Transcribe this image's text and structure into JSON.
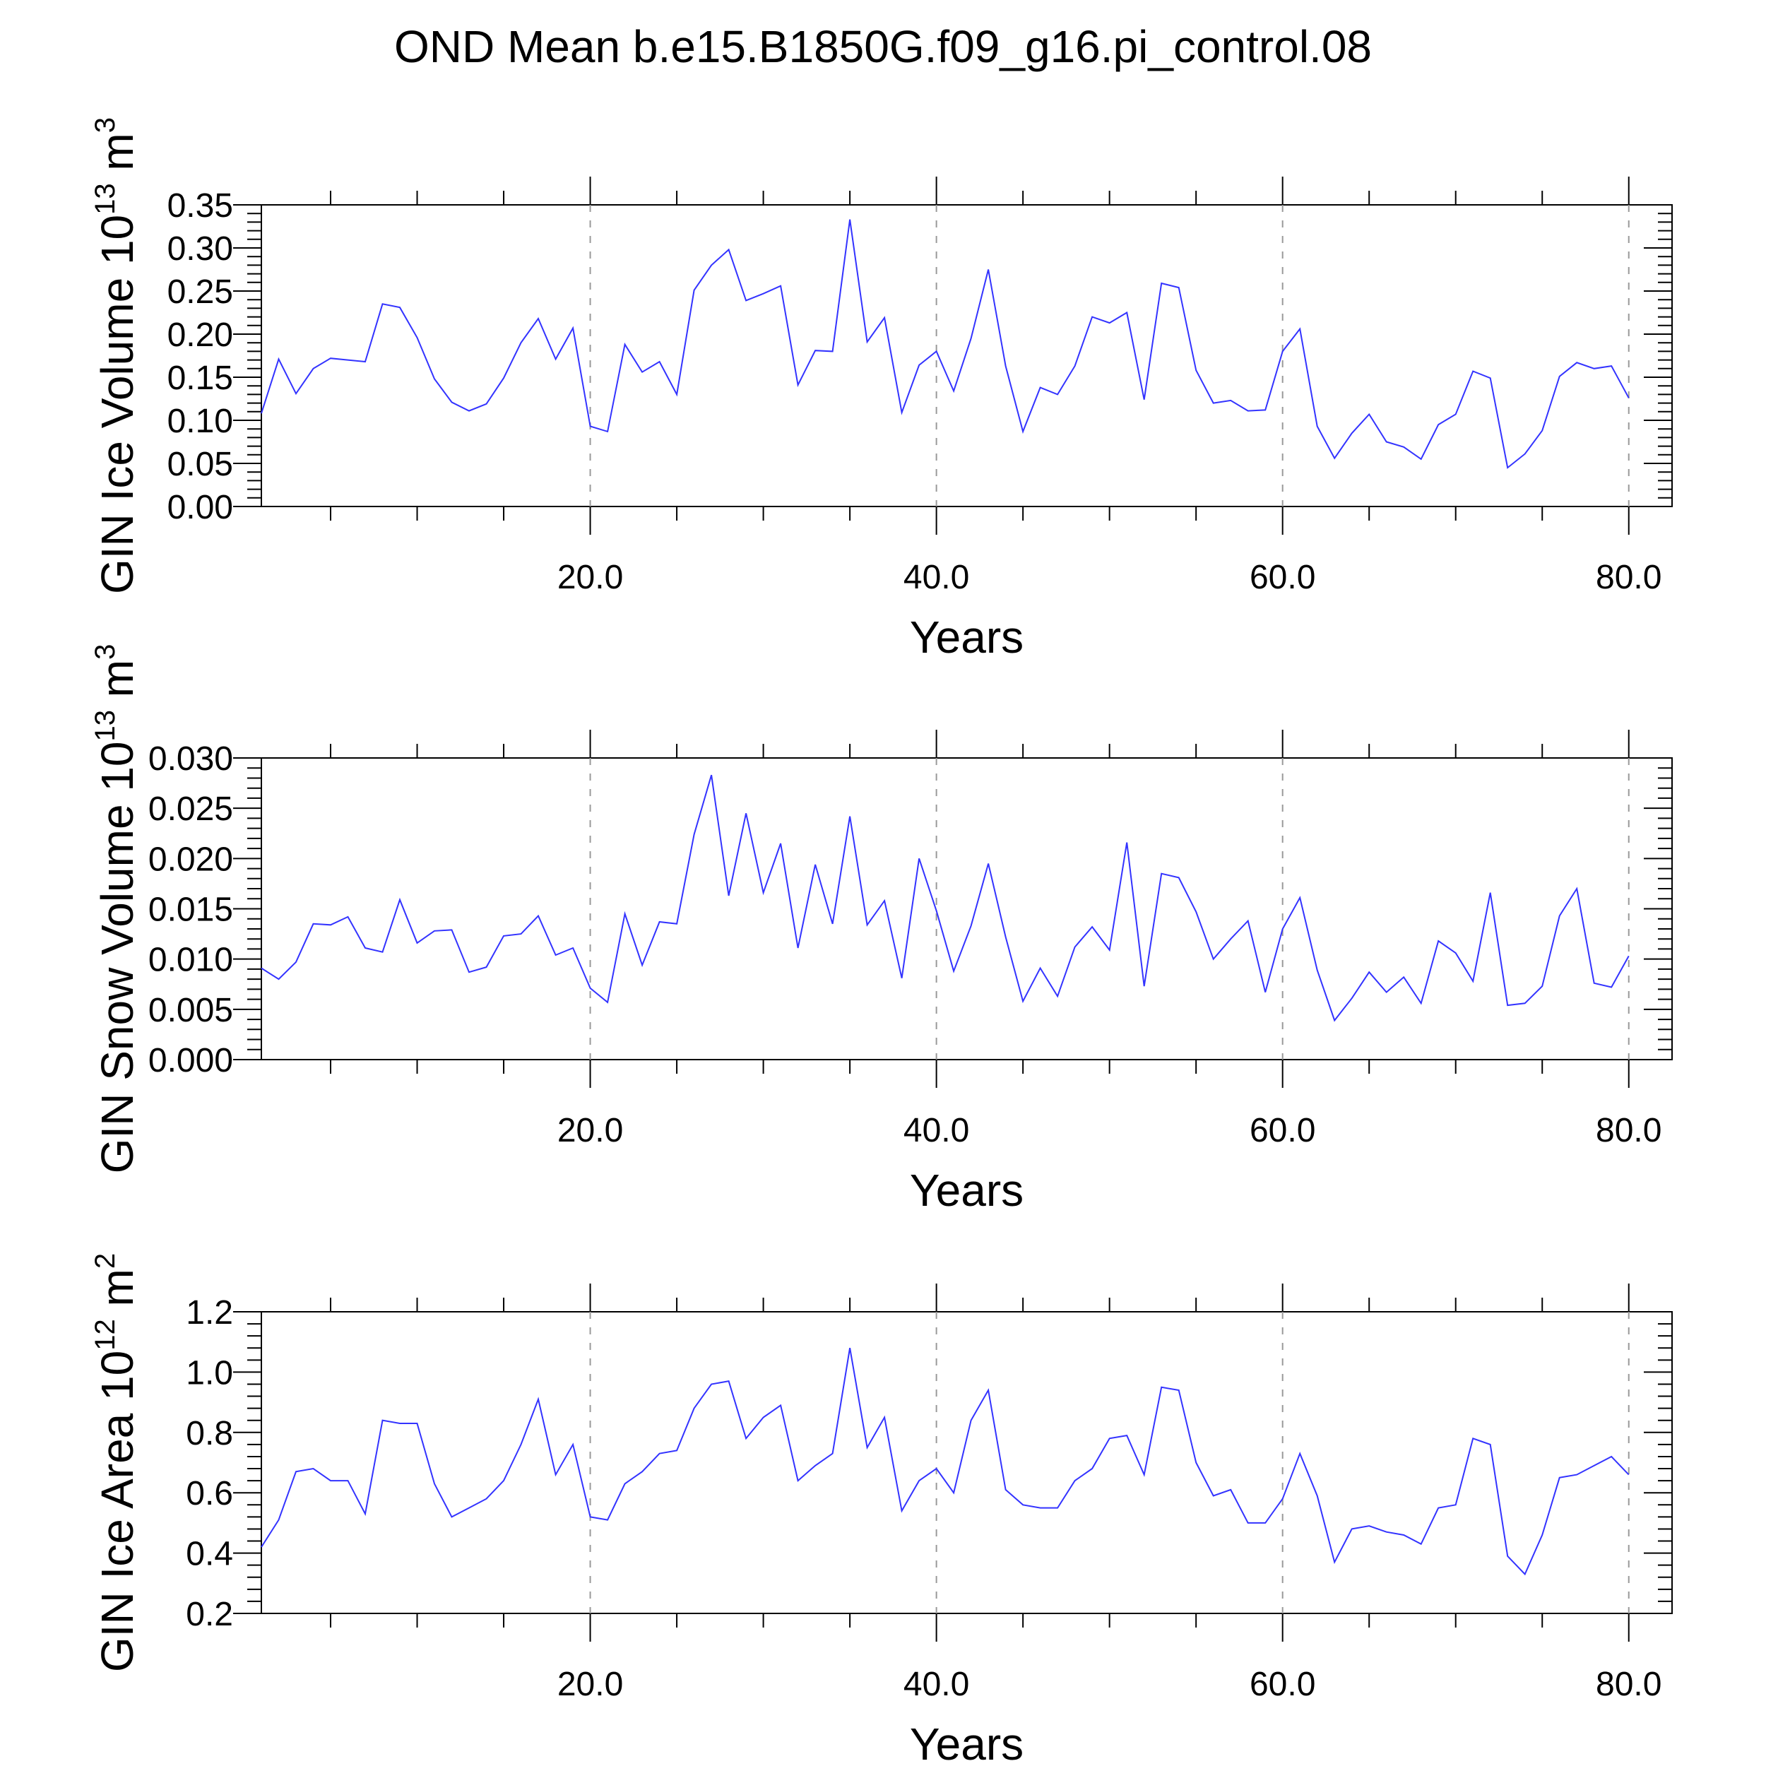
{
  "title": "OND Mean b.e15.B1850G.f09_g16.pi_control.08",
  "chart_data": [
    {
      "type": "line",
      "ylabel": "GIN Ice Volume 10",
      "ylabel_exp": "13",
      "ylabel_unit": " m",
      "ylabel_unit_exp": "3",
      "xlabel": "Years",
      "xlim": [
        1,
        82.5
      ],
      "ylim": [
        0,
        0.35
      ],
      "xticks": [
        20,
        40,
        60,
        80
      ],
      "xtick_labels": [
        "20.0",
        "40.0",
        "60.0",
        "80.0"
      ],
      "yticks": [
        0,
        0.05,
        0.1,
        0.15,
        0.2,
        0.25,
        0.3,
        0.35
      ],
      "ytick_labels": [
        "0.00",
        "0.05",
        "0.10",
        "0.15",
        "0.20",
        "0.25",
        "0.30",
        "0.35"
      ],
      "grid": "dashed vertical at major x ticks",
      "color": "#3333ff",
      "series": [
        {
          "x": [
            1,
            2,
            3,
            4,
            5,
            6,
            7,
            8,
            9,
            10,
            11,
            12,
            13,
            14,
            15,
            16,
            17,
            18,
            19,
            20,
            21,
            22,
            23,
            24,
            25,
            26,
            27,
            28,
            29,
            30,
            31,
            32,
            33,
            34,
            35,
            36,
            37,
            38,
            39,
            40,
            41,
            42,
            43,
            44,
            45,
            46,
            47,
            48,
            49,
            50,
            51,
            52,
            53,
            54,
            55,
            56,
            57,
            58,
            59,
            60,
            61,
            62,
            63,
            64,
            65,
            66,
            67,
            68,
            69,
            70,
            71,
            72,
            73,
            74,
            75,
            76,
            77,
            78,
            79,
            80
          ],
          "values": [
            0.108,
            0.171,
            0.131,
            0.16,
            0.172,
            0.17,
            0.168,
            0.235,
            0.231,
            0.196,
            0.148,
            0.121,
            0.111,
            0.119,
            0.149,
            0.19,
            0.218,
            0.171,
            0.207,
            0.093,
            0.087,
            0.188,
            0.156,
            0.168,
            0.13,
            0.251,
            0.28,
            0.298,
            0.239,
            0.247,
            0.256,
            0.141,
            0.181,
            0.18,
            0.333,
            0.191,
            0.219,
            0.109,
            0.164,
            0.18,
            0.134,
            0.195,
            0.275,
            0.163,
            0.087,
            0.138,
            0.13,
            0.163,
            0.22,
            0.213,
            0.225,
            0.124,
            0.259,
            0.254,
            0.158,
            0.12,
            0.123,
            0.111,
            0.112,
            0.18,
            0.206,
            0.093,
            0.056,
            0.085,
            0.107,
            0.075,
            0.069,
            0.055,
            0.095,
            0.107,
            0.157,
            0.149,
            0.045,
            0.061,
            0.088,
            0.151,
            0.167,
            0.16,
            0.163,
            0.126
          ]
        }
      ]
    },
    {
      "type": "line",
      "ylabel": "GIN Snow Volume 10",
      "ylabel_exp": "13",
      "ylabel_unit": " m",
      "ylabel_unit_exp": "3",
      "xlabel": "Years",
      "xlim": [
        1,
        82.5
      ],
      "ylim": [
        0,
        0.03
      ],
      "xticks": [
        20,
        40,
        60,
        80
      ],
      "xtick_labels": [
        "20.0",
        "40.0",
        "60.0",
        "80.0"
      ],
      "yticks": [
        0,
        0.005,
        0.01,
        0.015,
        0.02,
        0.025,
        0.03
      ],
      "ytick_labels": [
        "0.000",
        "0.005",
        "0.010",
        "0.015",
        "0.020",
        "0.025",
        "0.030"
      ],
      "grid": "dashed vertical at major x ticks",
      "color": "#3333ff",
      "series": [
        {
          "x": [
            1,
            2,
            3,
            4,
            5,
            6,
            7,
            8,
            9,
            10,
            11,
            12,
            13,
            14,
            15,
            16,
            17,
            18,
            19,
            20,
            21,
            22,
            23,
            24,
            25,
            26,
            27,
            28,
            29,
            30,
            31,
            32,
            33,
            34,
            35,
            36,
            37,
            38,
            39,
            40,
            41,
            42,
            43,
            44,
            45,
            46,
            47,
            48,
            49,
            50,
            51,
            52,
            53,
            54,
            55,
            56,
            57,
            58,
            59,
            60,
            61,
            62,
            63,
            64,
            65,
            66,
            67,
            68,
            69,
            70,
            71,
            72,
            73,
            74,
            75,
            76,
            77,
            78,
            79,
            80
          ],
          "values": [
            0.0091,
            0.008,
            0.0097,
            0.0135,
            0.0134,
            0.0142,
            0.0111,
            0.0107,
            0.0159,
            0.0116,
            0.0128,
            0.0129,
            0.0087,
            0.0092,
            0.0123,
            0.0125,
            0.0143,
            0.0104,
            0.0111,
            0.0071,
            0.0057,
            0.0145,
            0.0094,
            0.0137,
            0.0135,
            0.0224,
            0.0283,
            0.0163,
            0.0245,
            0.0166,
            0.0215,
            0.0111,
            0.0194,
            0.0135,
            0.0242,
            0.0134,
            0.0158,
            0.0081,
            0.02,
            0.0148,
            0.0088,
            0.0133,
            0.0195,
            0.0122,
            0.0058,
            0.0091,
            0.0063,
            0.0112,
            0.0132,
            0.0109,
            0.0216,
            0.0073,
            0.0185,
            0.0181,
            0.0147,
            0.01,
            0.012,
            0.0138,
            0.0067,
            0.013,
            0.0161,
            0.0089,
            0.0039,
            0.0061,
            0.0087,
            0.0067,
            0.0082,
            0.0056,
            0.0118,
            0.0106,
            0.0078,
            0.0166,
            0.0054,
            0.0056,
            0.0073,
            0.0143,
            0.017,
            0.0076,
            0.0072,
            0.0103
          ]
        }
      ]
    },
    {
      "type": "line",
      "ylabel": "GIN Ice Area 10",
      "ylabel_exp": "12",
      "ylabel_unit": " m",
      "ylabel_unit_exp": "2",
      "xlabel": "Years",
      "xlim": [
        1,
        82.5
      ],
      "ylim": [
        0.2,
        1.2
      ],
      "xticks": [
        20,
        40,
        60,
        80
      ],
      "xtick_labels": [
        "20.0",
        "40.0",
        "60.0",
        "80.0"
      ],
      "yticks": [
        0.2,
        0.4,
        0.6,
        0.8,
        1.0,
        1.2
      ],
      "ytick_labels": [
        "0.2",
        "0.4",
        "0.6",
        "0.8",
        "1.0",
        "1.2"
      ],
      "grid": "dashed vertical at major x ticks",
      "color": "#3333ff",
      "series": [
        {
          "x": [
            1,
            2,
            3,
            4,
            5,
            6,
            7,
            8,
            9,
            10,
            11,
            12,
            13,
            14,
            15,
            16,
            17,
            18,
            19,
            20,
            21,
            22,
            23,
            24,
            25,
            26,
            27,
            28,
            29,
            30,
            31,
            32,
            33,
            34,
            35,
            36,
            37,
            38,
            39,
            40,
            41,
            42,
            43,
            44,
            45,
            46,
            47,
            48,
            49,
            50,
            51,
            52,
            53,
            54,
            55,
            56,
            57,
            58,
            59,
            60,
            61,
            62,
            63,
            64,
            65,
            66,
            67,
            68,
            69,
            70,
            71,
            72,
            73,
            74,
            75,
            76,
            77,
            78,
            79,
            80
          ],
          "values": [
            0.42,
            0.51,
            0.67,
            0.68,
            0.64,
            0.64,
            0.53,
            0.84,
            0.83,
            0.83,
            0.63,
            0.52,
            0.55,
            0.58,
            0.64,
            0.76,
            0.91,
            0.66,
            0.76,
            0.52,
            0.51,
            0.63,
            0.67,
            0.73,
            0.74,
            0.88,
            0.96,
            0.97,
            0.78,
            0.85,
            0.89,
            0.64,
            0.69,
            0.73,
            1.08,
            0.75,
            0.85,
            0.54,
            0.64,
            0.68,
            0.6,
            0.84,
            0.94,
            0.61,
            0.56,
            0.55,
            0.55,
            0.64,
            0.68,
            0.78,
            0.79,
            0.66,
            0.95,
            0.94,
            0.7,
            0.59,
            0.61,
            0.5,
            0.5,
            0.58,
            0.73,
            0.59,
            0.37,
            0.48,
            0.49,
            0.47,
            0.46,
            0.43,
            0.55,
            0.56,
            0.78,
            0.76,
            0.39,
            0.33,
            0.46,
            0.65,
            0.66,
            0.69,
            0.72,
            0.66
          ]
        }
      ]
    }
  ]
}
